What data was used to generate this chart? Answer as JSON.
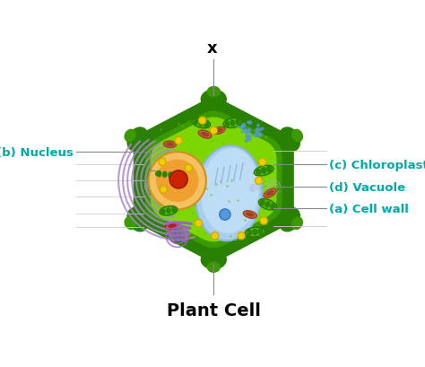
{
  "title": "Plant Cell",
  "title_fontsize": 14,
  "title_fontweight": "bold",
  "title_color": "#000000",
  "labels": {
    "cell_wall": "(a) Cell wall",
    "nucleus": "(b) Nucleus",
    "chloroplast": "(c) Chloroplast",
    "vacuole": "(d) Vacuole"
  },
  "label_x": "x",
  "label_color": "#00aaaa",
  "label_fontsize": 9.5,
  "label_fontweight": "bold",
  "colors": {
    "outer_wall": "#2a8000",
    "inner_rim": "#3a9a00",
    "cytoplasm_bg": "#7dd600",
    "inner_cell": "#99e600",
    "vacuole_fill": "#aacfee",
    "vacuole_edge": "#88b8dd",
    "nucleus_outer": "#f5c060",
    "nucleus_mid": "#f0a030",
    "nucleolus": "#cc2200",
    "er_purple": "#aa88cc",
    "chloro_body": "#44aa00",
    "chloro_dark": "#228800",
    "chloro_stripe": "#44bb00",
    "mito_outer": "#cc6633",
    "mito_inner": "#994422",
    "golgi_purple": "#9966bb",
    "vesicle_yellow": "#f0cc00",
    "vesicle_edge": "#c8a800",
    "spiral_color": "#aabbcc",
    "dot_color": "#66bb00",
    "background": "#ffffff",
    "label_line": "#aaaaaa"
  }
}
